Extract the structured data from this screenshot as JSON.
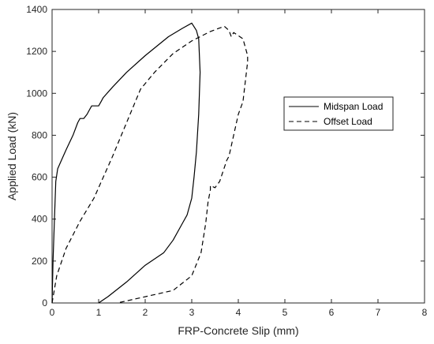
{
  "chart_data": {
    "type": "line",
    "title": "",
    "xlabel": "FRP-Concrete Slip (mm)",
    "ylabel": "Applied Load (kN)",
    "xlim": [
      0,
      8
    ],
    "ylim": [
      0,
      1400
    ],
    "xticks": [
      0,
      1,
      2,
      3,
      4,
      5,
      6,
      7,
      8
    ],
    "yticks": [
      0,
      200,
      400,
      600,
      800,
      1000,
      1200,
      1400
    ],
    "grid": false,
    "legend_position": "center-right",
    "series": [
      {
        "name": "Midspan Load",
        "style": "solid",
        "color": "#000000",
        "x": [
          0.0,
          0.02,
          0.05,
          0.08,
          0.12,
          0.2,
          0.3,
          0.45,
          0.55,
          0.6,
          0.68,
          0.75,
          0.8,
          0.85,
          0.9,
          1.0,
          1.05,
          1.1,
          1.3,
          1.6,
          2.0,
          2.5,
          2.8,
          3.0,
          3.1,
          3.15,
          3.18,
          3.15,
          3.1,
          3.05,
          3.0,
          2.9,
          2.8,
          2.6,
          2.4,
          2.0,
          1.6,
          1.2,
          1.0
        ],
        "y": [
          0,
          200,
          400,
          580,
          640,
          680,
          730,
          800,
          860,
          880,
          880,
          900,
          920,
          940,
          940,
          940,
          960,
          980,
          1030,
          1100,
          1180,
          1270,
          1310,
          1335,
          1300,
          1260,
          1100,
          900,
          720,
          600,
          500,
          420,
          380,
          300,
          240,
          180,
          100,
          30,
          0
        ]
      },
      {
        "name": "Offset Load",
        "style": "dashed",
        "color": "#000000",
        "x": [
          0.0,
          0.1,
          0.3,
          0.6,
          0.9,
          1.3,
          1.6,
          1.9,
          2.2,
          2.6,
          3.0,
          3.4,
          3.7,
          3.8,
          3.85,
          3.9,
          4.1,
          4.2,
          4.2,
          4.1,
          4.0,
          3.9,
          3.8,
          3.75,
          3.6,
          3.5,
          3.4,
          3.4,
          3.35,
          3.3,
          3.2,
          3.0,
          2.6,
          2.2,
          1.8,
          1.4
        ],
        "y": [
          0,
          130,
          260,
          390,
          500,
          700,
          860,
          1020,
          1100,
          1190,
          1250,
          1295,
          1320,
          1300,
          1270,
          1290,
          1260,
          1180,
          1150,
          960,
          900,
          800,
          700,
          680,
          580,
          550,
          560,
          540,
          480,
          380,
          240,
          130,
          60,
          40,
          20,
          0
        ]
      }
    ]
  }
}
